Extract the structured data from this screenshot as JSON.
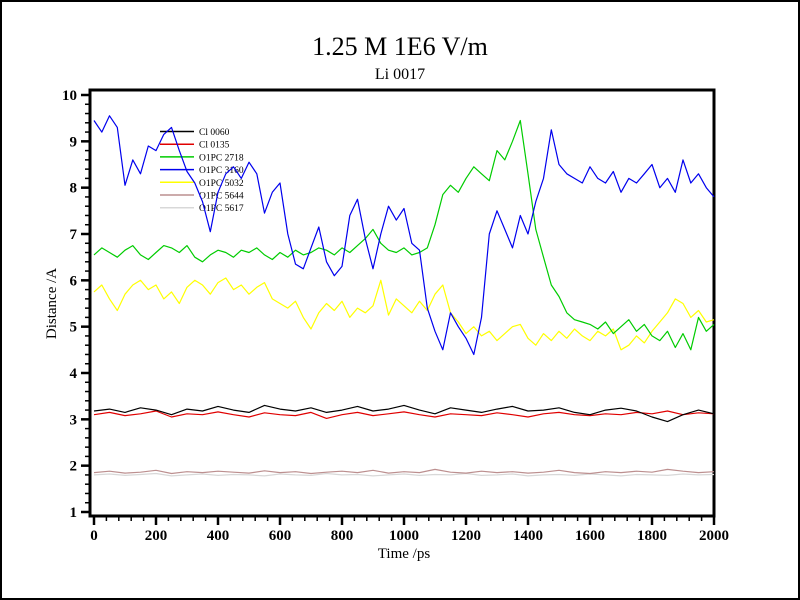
{
  "chart_data": {
    "type": "line",
    "title": "1.25 M 1E6 V/m",
    "subtitle": "Li 0017",
    "xlabel": "Time /ps",
    "ylabel": "Distance /A",
    "xlim": [
      0,
      2000
    ],
    "ylim": [
      1,
      10
    ],
    "x_major_ticks": [
      0,
      200,
      400,
      600,
      800,
      1000,
      1200,
      1400,
      1600,
      1800,
      2000
    ],
    "x_minor_step": 40,
    "y_major_ticks": [
      1,
      2,
      3,
      4,
      5,
      6,
      7,
      8,
      9,
      10
    ],
    "y_minor_step": 0.2,
    "grid": false,
    "background": "#ffffff",
    "axis_color": "#000000",
    "legend_position": "upper-left-inside",
    "series": [
      {
        "name": "Cl 0060",
        "color": "#000000",
        "x_start": 0,
        "x_step": 50,
        "values": [
          3.18,
          3.22,
          3.15,
          3.25,
          3.2,
          3.1,
          3.22,
          3.18,
          3.28,
          3.2,
          3.15,
          3.3,
          3.22,
          3.18,
          3.25,
          3.15,
          3.2,
          3.28,
          3.18,
          3.22,
          3.3,
          3.2,
          3.12,
          3.25,
          3.2,
          3.15,
          3.22,
          3.28,
          3.18,
          3.2,
          3.25,
          3.15,
          3.1,
          3.2,
          3.24,
          3.18,
          3.05,
          2.95,
          3.1,
          3.2,
          3.12
        ]
      },
      {
        "name": "Cl 0135",
        "color": "#e00000",
        "x_start": 0,
        "x_step": 50,
        "values": [
          3.1,
          3.15,
          3.08,
          3.12,
          3.18,
          3.05,
          3.12,
          3.1,
          3.16,
          3.1,
          3.05,
          3.14,
          3.1,
          3.08,
          3.15,
          3.02,
          3.1,
          3.15,
          3.08,
          3.12,
          3.16,
          3.1,
          3.05,
          3.12,
          3.1,
          3.08,
          3.14,
          3.1,
          3.05,
          3.12,
          3.15,
          3.1,
          3.08,
          3.12,
          3.1,
          3.15,
          3.12,
          3.18,
          3.1,
          3.14,
          3.12
        ]
      },
      {
        "name": "O1PC 2718",
        "color": "#00cc00",
        "x_start": 0,
        "x_step": 25,
        "values": [
          6.55,
          6.7,
          6.6,
          6.5,
          6.65,
          6.75,
          6.55,
          6.45,
          6.6,
          6.75,
          6.7,
          6.6,
          6.75,
          6.5,
          6.4,
          6.55,
          6.65,
          6.6,
          6.5,
          6.65,
          6.6,
          6.7,
          6.55,
          6.45,
          6.6,
          6.5,
          6.65,
          6.55,
          6.6,
          6.7,
          6.65,
          6.55,
          6.7,
          6.6,
          6.75,
          6.9,
          7.1,
          6.8,
          6.65,
          6.6,
          6.7,
          6.55,
          6.6,
          6.7,
          7.2,
          7.85,
          8.05,
          7.9,
          8.2,
          8.45,
          8.3,
          8.15,
          8.8,
          8.6,
          9.0,
          9.45,
          8.3,
          7.1,
          6.5,
          5.9,
          5.65,
          5.3,
          5.15,
          5.1,
          5.05,
          4.95,
          5.1,
          4.85,
          5.0,
          5.15,
          4.9,
          5.05,
          4.8,
          4.7,
          4.9,
          4.55,
          4.85,
          4.5,
          5.2,
          4.9,
          5.05
        ]
      },
      {
        "name": "O1PC 3160",
        "color": "#0000ee",
        "x_start": 0,
        "x_step": 25,
        "values": [
          9.45,
          9.2,
          9.55,
          9.3,
          8.05,
          8.6,
          8.3,
          8.9,
          8.8,
          9.15,
          9.3,
          8.8,
          8.35,
          8.1,
          7.7,
          7.05,
          7.9,
          8.3,
          8.45,
          8.2,
          8.55,
          8.3,
          7.45,
          7.9,
          8.1,
          7.0,
          6.35,
          6.25,
          6.7,
          7.15,
          6.4,
          6.1,
          6.3,
          7.4,
          7.75,
          6.9,
          6.25,
          7.0,
          7.6,
          7.3,
          7.55,
          6.8,
          6.65,
          5.4,
          4.9,
          4.5,
          5.3,
          5.0,
          4.75,
          4.4,
          5.2,
          7.0,
          7.5,
          7.1,
          6.7,
          7.4,
          7.0,
          7.7,
          8.2,
          9.25,
          8.5,
          8.3,
          8.2,
          8.1,
          8.45,
          8.2,
          8.1,
          8.35,
          7.9,
          8.2,
          8.1,
          8.3,
          8.5,
          8.0,
          8.2,
          7.9,
          8.6,
          8.1,
          8.3,
          8.0,
          7.8
        ]
      },
      {
        "name": "O1PC 5032",
        "color": "#ffff00",
        "x_start": 0,
        "x_step": 25,
        "values": [
          5.75,
          5.9,
          5.6,
          5.35,
          5.7,
          5.9,
          6.0,
          5.8,
          5.9,
          5.6,
          5.75,
          5.5,
          5.85,
          6.0,
          5.9,
          5.7,
          5.95,
          6.05,
          5.8,
          5.9,
          5.7,
          5.85,
          5.95,
          5.6,
          5.5,
          5.4,
          5.55,
          5.2,
          4.95,
          5.3,
          5.5,
          5.35,
          5.55,
          5.2,
          5.4,
          5.3,
          5.45,
          6.0,
          5.25,
          5.6,
          5.45,
          5.3,
          5.55,
          5.35,
          5.7,
          5.9,
          5.3,
          5.1,
          4.85,
          5.0,
          4.8,
          4.9,
          4.7,
          4.85,
          5.0,
          5.05,
          4.75,
          4.6,
          4.85,
          4.7,
          4.9,
          4.75,
          4.95,
          4.8,
          4.7,
          4.9,
          4.8,
          4.95,
          4.5,
          4.6,
          4.8,
          4.65,
          4.9,
          5.1,
          5.3,
          5.6,
          5.5,
          5.2,
          5.35,
          5.1,
          5.15
        ]
      },
      {
        "name": "O1PC 5644",
        "color": "#bc8f8f",
        "x_start": 0,
        "x_step": 50,
        "values": [
          1.85,
          1.88,
          1.84,
          1.86,
          1.9,
          1.83,
          1.87,
          1.85,
          1.88,
          1.86,
          1.84,
          1.89,
          1.85,
          1.87,
          1.83,
          1.86,
          1.88,
          1.85,
          1.9,
          1.84,
          1.87,
          1.85,
          1.92,
          1.86,
          1.84,
          1.88,
          1.85,
          1.87,
          1.84,
          1.86,
          1.9,
          1.85,
          1.83,
          1.87,
          1.85,
          1.88,
          1.86,
          1.92,
          1.88,
          1.85,
          1.87
        ]
      },
      {
        "name": "O1PC 5617",
        "color": "#d8d8d8",
        "x_start": 0,
        "x_step": 50,
        "values": [
          1.8,
          1.82,
          1.79,
          1.81,
          1.83,
          1.78,
          1.8,
          1.82,
          1.79,
          1.81,
          1.8,
          1.78,
          1.82,
          1.8,
          1.79,
          1.83,
          1.8,
          1.81,
          1.78,
          1.8,
          1.82,
          1.79,
          1.81,
          1.8,
          1.83,
          1.79,
          1.8,
          1.82,
          1.78,
          1.8,
          1.81,
          1.79,
          1.82,
          1.8,
          1.78,
          1.81,
          1.8,
          1.79,
          1.82,
          1.8,
          1.81
        ]
      }
    ]
  }
}
